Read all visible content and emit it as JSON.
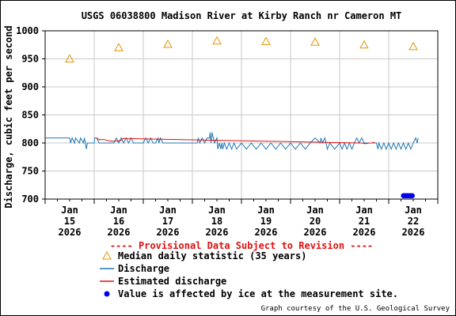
{
  "chart_data": {
    "type": "line",
    "title": "USGS 06038800 Madison River at Kirby Ranch nr Cameron MT",
    "ylabel": "Discharge, cubic feet per second",
    "xlabel": "",
    "ylim": [
      700,
      1000
    ],
    "yticks": [
      700,
      750,
      800,
      850,
      900,
      950,
      1000
    ],
    "xlim": [
      0,
      8
    ],
    "grid": true,
    "xticks": [
      {
        "x": 0.5,
        "label": [
          "Jan",
          "15",
          "2026"
        ]
      },
      {
        "x": 1.5,
        "label": [
          "Jan",
          "16",
          "2026"
        ]
      },
      {
        "x": 2.5,
        "label": [
          "Jan",
          "17",
          "2026"
        ]
      },
      {
        "x": 3.5,
        "label": [
          "Jan",
          "18",
          "2026"
        ]
      },
      {
        "x": 4.5,
        "label": [
          "Jan",
          "19",
          "2026"
        ]
      },
      {
        "x": 5.5,
        "label": [
          "Jan",
          "20",
          "2026"
        ]
      },
      {
        "x": 6.5,
        "label": [
          "Jan",
          "21",
          "2026"
        ]
      },
      {
        "x": 7.5,
        "label": [
          "Jan",
          "22",
          "2026"
        ]
      }
    ],
    "series": [
      {
        "name": "Median daily statistic (35 years)",
        "kind": "marker-triangle",
        "color": "#e69500",
        "x": [
          0.5,
          1.5,
          2.5,
          3.5,
          4.5,
          5.5,
          6.5,
          7.5
        ],
        "values": [
          950,
          970,
          976,
          982,
          981,
          980,
          975,
          972
        ]
      },
      {
        "name": "Discharge",
        "kind": "line",
        "color": "#1f77b4",
        "x": [
          0,
          0.5,
          0.52,
          0.55,
          0.6,
          0.62,
          0.7,
          0.72,
          0.78,
          0.8,
          0.82,
          0.84,
          0.86,
          1.0,
          1.01,
          1.05,
          1.1,
          1.4,
          1.45,
          1.5,
          1.55,
          1.6,
          1.65,
          1.7,
          1.75,
          1.8,
          1.82,
          2.0,
          2.05,
          2.1,
          2.15,
          2.2,
          2.25,
          2.3,
          2.32,
          2.35,
          2.4,
          3.1,
          3.12,
          3.15,
          3.2,
          3.25,
          3.3,
          3.35,
          3.36,
          3.38,
          3.4,
          3.45,
          3.5,
          3.52,
          3.55,
          3.58,
          3.6,
          3.62,
          3.65,
          3.7,
          3.75,
          3.8,
          3.85,
          3.9,
          4.0,
          4.1,
          4.2,
          4.3,
          4.4,
          4.5,
          4.6,
          4.7,
          4.8,
          4.9,
          5.0,
          5.1,
          5.2,
          5.3,
          5.4,
          5.5,
          5.6,
          5.62,
          5.65,
          5.7,
          5.75,
          5.8,
          5.9,
          6.0,
          6.05,
          6.1,
          6.15,
          6.2,
          6.25,
          6.3,
          6.35,
          6.4,
          6.45,
          6.5,
          6.55,
          6.6,
          6.65,
          6.7,
          6.75,
          6.78,
          6.8,
          6.85,
          6.9,
          6.95,
          7.0,
          7.05,
          7.1,
          7.15,
          7.2,
          7.25,
          7.3,
          7.35,
          7.4,
          7.45,
          7.5,
          7.55,
          7.58,
          7.6
        ],
        "values": [
          809,
          809,
          800,
          809,
          800,
          809,
          800,
          809,
          800,
          809,
          800,
          789,
          800,
          800,
          809,
          809,
          800,
          800,
          809,
          800,
          809,
          800,
          809,
          800,
          809,
          800,
          800,
          800,
          809,
          800,
          809,
          800,
          800,
          809,
          800,
          809,
          800,
          800,
          809,
          800,
          809,
          800,
          809,
          809,
          819,
          800,
          819,
          800,
          809,
          789,
          800,
          789,
          800,
          789,
          800,
          789,
          800,
          789,
          800,
          789,
          800,
          789,
          800,
          789,
          800,
          789,
          800,
          789,
          800,
          789,
          800,
          789,
          800,
          789,
          800,
          809,
          800,
          809,
          800,
          809,
          789,
          800,
          789,
          800,
          789,
          800,
          789,
          800,
          789,
          800,
          809,
          800,
          809,
          800,
          800,
          800,
          800,
          800,
          800,
          789,
          800,
          789,
          800,
          789,
          800,
          789,
          800,
          789,
          800,
          789,
          800,
          789,
          800,
          789,
          800,
          809,
          800,
          809
        ]
      },
      {
        "name": "Estimated discharge",
        "kind": "line",
        "color": "#e01010",
        "x": [
          1.04,
          1.1,
          1.2,
          1.3,
          1.4,
          1.5,
          1.55,
          1.58,
          6.4,
          6.45,
          6.5,
          6.55,
          6.6,
          6.65,
          6.7,
          6.72
        ],
        "values": [
          809,
          806,
          806,
          804,
          803,
          804,
          805,
          808,
          800,
          800,
          799,
          799,
          800,
          800,
          801,
          800
        ]
      },
      {
        "name": "Value is affected by ice at the measurement site.",
        "kind": "marker-ice",
        "color": "#0000ee",
        "x": [
          7.3,
          7.33,
          7.36,
          7.39,
          7.42,
          7.45,
          7.48
        ],
        "values": [
          706,
          706,
          706,
          706,
          706,
          706,
          706
        ]
      }
    ]
  },
  "notice": "---- Provisional Data Subject to Revision ----",
  "notice_color": "#e01010",
  "legend": [
    {
      "name": "Median daily statistic (35 years)",
      "symbol": "triangle",
      "color": "#e69500"
    },
    {
      "name": "Discharge",
      "symbol": "line",
      "color": "#1f77b4"
    },
    {
      "name": "Estimated discharge",
      "symbol": "line",
      "color": "#e01010"
    },
    {
      "name": "Value is affected by ice at the measurement site.",
      "symbol": "dot",
      "color": "#0000ee"
    }
  ],
  "credit": "Graph courtesy of the U.S. Geological Survey"
}
